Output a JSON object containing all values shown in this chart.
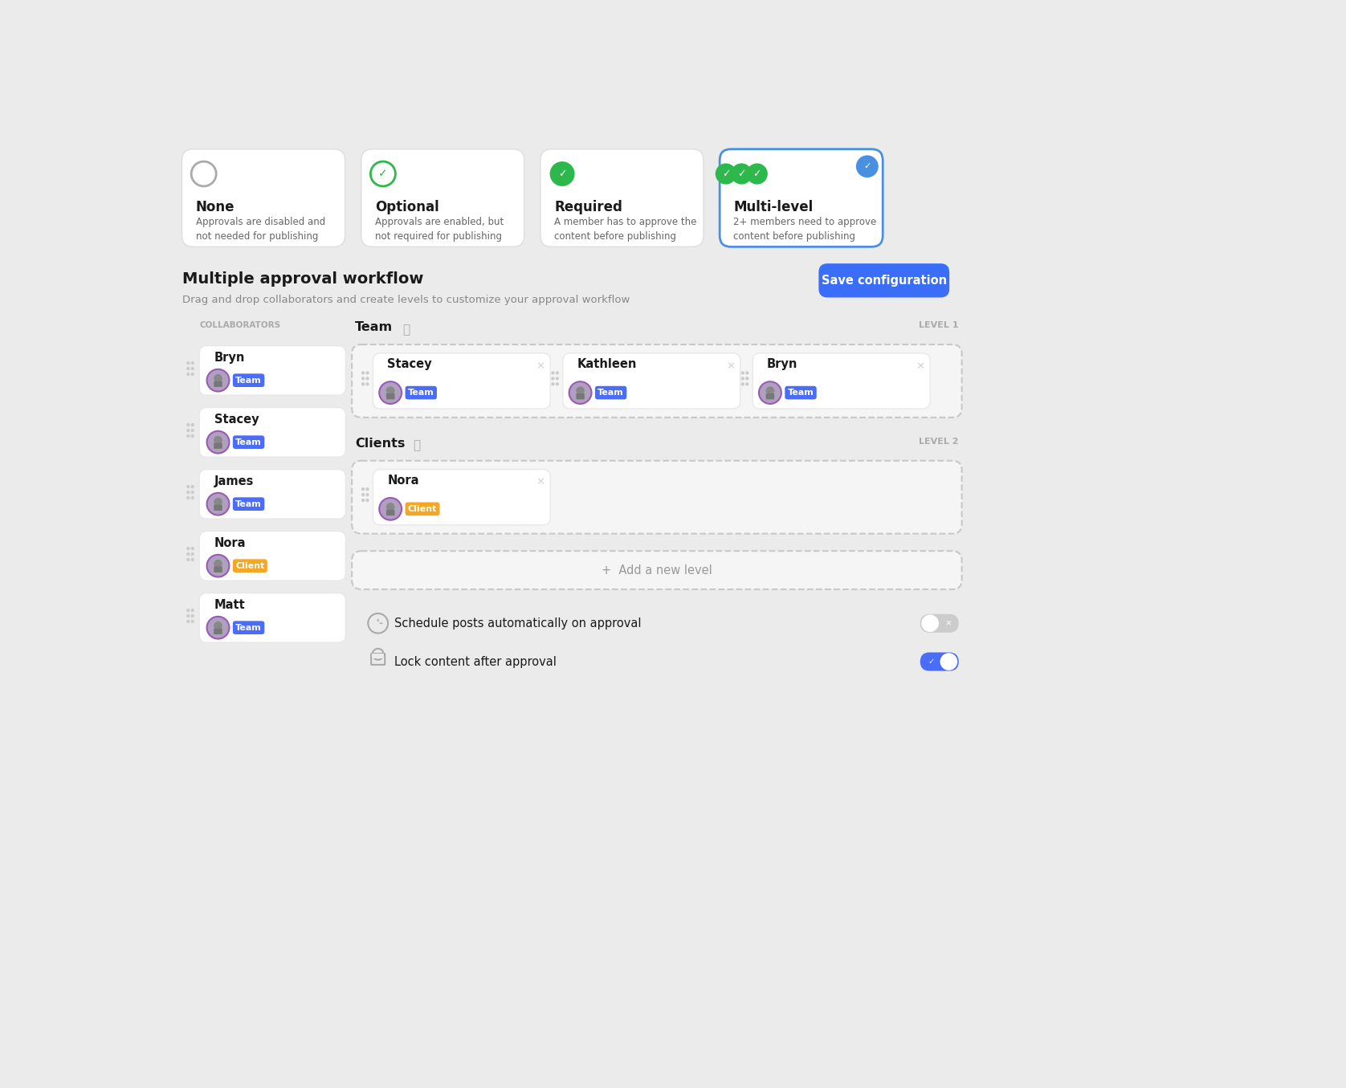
{
  "bg_color": "#ebebeb",
  "approval_types": [
    {
      "title": "None",
      "desc": "Approvals are disabled and not needed for publishing",
      "icon": "circle_empty",
      "selected": false
    },
    {
      "title": "Optional",
      "desc": "Approvals are enabled, but not required for publishing",
      "icon": "check_outline",
      "selected": false
    },
    {
      "title": "Required",
      "desc": "A member has to approve the content before publishing",
      "icon": "check_filled",
      "selected": false
    },
    {
      "title": "Multi-level",
      "desc": "2+ members need to approve content before publishing",
      "icon": "check_triple",
      "selected": true
    }
  ],
  "section_title": "Multiple approval workflow",
  "section_subtitle": "Drag and drop collaborators and create levels to customize your approval workflow",
  "save_button_text": "Save configuration",
  "save_button_color": "#3b6ef8",
  "collaborators_label": "COLLABORATORS",
  "collaborators": [
    {
      "name": "Bryn",
      "tag": "Team",
      "tag_color": "#4a6cf7"
    },
    {
      "name": "Stacey",
      "tag": "Team",
      "tag_color": "#4a6cf7"
    },
    {
      "name": "James",
      "tag": "Team",
      "tag_color": "#4a6cf7"
    },
    {
      "name": "Nora",
      "tag": "Client",
      "tag_color": "#f5a623"
    },
    {
      "name": "Matt",
      "tag": "Team",
      "tag_color": "#4a6cf7"
    }
  ],
  "level1_label": "Team",
  "level1_tag": "LEVEL 1",
  "level1_members": [
    {
      "name": "Stacey",
      "tag": "Team",
      "tag_color": "#4a6cf7"
    },
    {
      "name": "Kathleen",
      "tag": "Team",
      "tag_color": "#4a6cf7"
    },
    {
      "name": "Bryn",
      "tag": "Team",
      "tag_color": "#4a6cf7"
    }
  ],
  "level2_label": "Clients",
  "level2_tag": "LEVEL 2",
  "level2_members": [
    {
      "name": "Nora",
      "tag": "Client",
      "tag_color": "#f5a623"
    }
  ],
  "add_level_text": "+  Add a new level",
  "toggles": [
    {
      "label": "Schedule posts automatically on approval",
      "on": false
    },
    {
      "label": "Lock content after approval",
      "on": true
    }
  ],
  "green_color": "#2db84b",
  "blue_selected_border": "#4a90e2",
  "card_bg": "#ffffff",
  "text_dark": "#1a1a1a",
  "text_gray": "#888888",
  "toggle_on_color": "#4a6cf7",
  "toggle_off_color": "#cccccc"
}
